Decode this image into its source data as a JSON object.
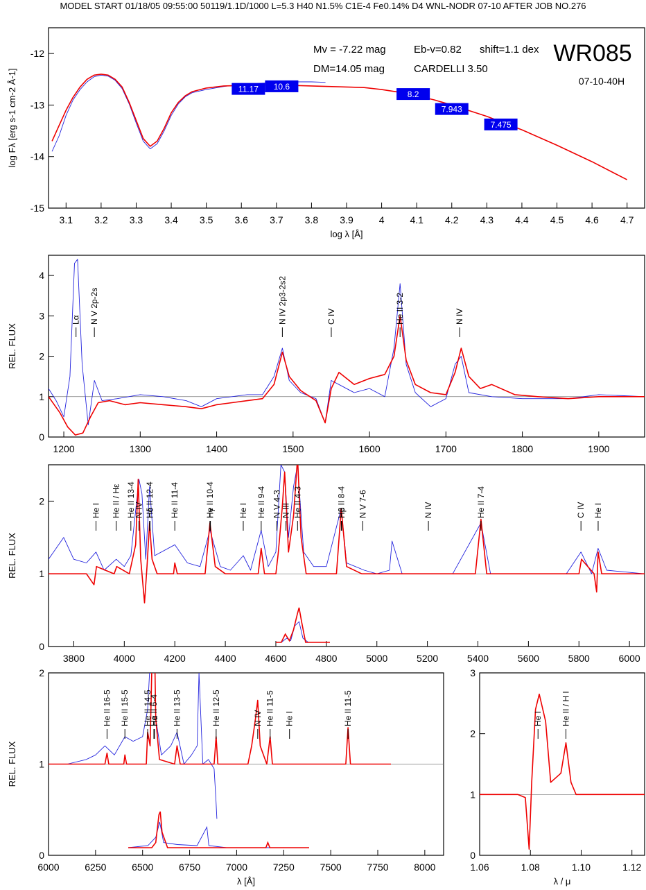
{
  "header": "MODEL START   01/18/05  09:55:00    50119/1.1D/1000 L=5.3 H40 N1.5% C1E-4 Fe0.14% D4 WNL-NODR 07-10     AFTER JOB NO.276",
  "colors": {
    "model": "#ee0000",
    "observation": "#2222dd",
    "box": "#0000ee",
    "axis": "#000000"
  },
  "chart_data": [
    {
      "id": "sed",
      "type": "line",
      "xlabel": "log λ [Å]",
      "ylabel": "log Fλ [erg s-1 cm-2 Å-1]",
      "xlim": [
        3.05,
        4.75
      ],
      "ylim": [
        -15,
        -11.5
      ],
      "xticks": [
        3.1,
        3.2,
        3.3,
        3.4,
        3.5,
        3.6,
        3.7,
        3.8,
        3.9,
        4.0,
        4.1,
        4.2,
        4.3,
        4.4,
        4.5,
        4.6,
        4.7
      ],
      "yticks": [
        -12,
        -13,
        -14,
        -15
      ],
      "title": "WR085",
      "subtitle": "07-10-40H",
      "annotations": [
        "Mv = -7.22 mag",
        "Eb-v=0.82",
        "shift=1.1 dex",
        "DM=14.05 mag",
        "CARDELLI 3.50"
      ],
      "boxes": [
        {
          "label": "11.17",
          "x": 3.62,
          "y": -12.68
        },
        {
          "label": "10.6",
          "x": 3.715,
          "y": -12.63
        },
        {
          "label": "8.2",
          "x": 4.09,
          "y": -12.78
        },
        {
          "label": "7.943",
          "x": 4.2,
          "y": -13.07
        },
        {
          "label": "7.475",
          "x": 4.34,
          "y": -13.37
        }
      ],
      "model": {
        "x": [
          3.06,
          3.08,
          3.1,
          3.12,
          3.14,
          3.16,
          3.18,
          3.2,
          3.22,
          3.24,
          3.26,
          3.28,
          3.3,
          3.32,
          3.34,
          3.36,
          3.38,
          3.4,
          3.42,
          3.44,
          3.46,
          3.5,
          3.55,
          3.6,
          3.65,
          3.7,
          3.75,
          3.8,
          3.85,
          3.9,
          3.95,
          4.0,
          4.05,
          4.1,
          4.15,
          4.2,
          4.3,
          4.4,
          4.5,
          4.6,
          4.7
        ],
        "y": [
          -13.7,
          -13.4,
          -13.1,
          -12.85,
          -12.65,
          -12.5,
          -12.42,
          -12.4,
          -12.42,
          -12.5,
          -12.65,
          -12.95,
          -13.3,
          -13.65,
          -13.8,
          -13.7,
          -13.45,
          -13.15,
          -12.95,
          -12.82,
          -12.74,
          -12.67,
          -12.63,
          -12.62,
          -12.61,
          -12.61,
          -12.62,
          -12.63,
          -12.64,
          -12.65,
          -12.66,
          -12.7,
          -12.75,
          -12.82,
          -12.9,
          -13.0,
          -13.22,
          -13.48,
          -13.78,
          -14.1,
          -14.45
        ]
      },
      "observation": {
        "x": [
          3.06,
          3.08,
          3.1,
          3.12,
          3.14,
          3.16,
          3.18,
          3.2,
          3.22,
          3.24,
          3.26,
          3.28,
          3.3,
          3.32,
          3.34,
          3.36,
          3.38,
          3.4,
          3.42,
          3.44,
          3.46,
          3.5,
          3.55,
          3.6,
          3.65,
          3.7,
          3.75,
          3.8,
          3.84
        ],
        "y": [
          -13.9,
          -13.6,
          -13.2,
          -12.9,
          -12.7,
          -12.55,
          -12.45,
          -12.42,
          -12.44,
          -12.52,
          -12.68,
          -12.98,
          -13.35,
          -13.7,
          -13.85,
          -13.75,
          -13.5,
          -13.2,
          -12.98,
          -12.84,
          -12.76,
          -12.7,
          -12.64,
          -12.6,
          -12.58,
          -12.56,
          -12.55,
          -12.55,
          -12.56
        ]
      }
    },
    {
      "id": "uv",
      "type": "line",
      "ylabel": "REL. FLUX",
      "xlim": [
        1180,
        1960
      ],
      "ylim": [
        0,
        4.5
      ],
      "xticks": [
        1200,
        1300,
        1400,
        1500,
        1600,
        1700,
        1800,
        1900
      ],
      "yticks": [
        0,
        1,
        2,
        3,
        4
      ],
      "lines": [
        {
          "label": "Lα",
          "x": 1216
        },
        {
          "label": "N V 2p-2s",
          "x": 1240
        },
        {
          "label": "N IV 2p3-2s2",
          "x": 1486
        },
        {
          "label": "C IV",
          "x": 1550
        },
        {
          "label": "He II 3-2",
          "x": 1640
        },
        {
          "label": "N IV",
          "x": 1718
        }
      ],
      "model": {
        "x": [
          1180,
          1195,
          1205,
          1215,
          1225,
          1235,
          1245,
          1260,
          1280,
          1300,
          1330,
          1360,
          1380,
          1400,
          1420,
          1440,
          1460,
          1475,
          1486,
          1495,
          1510,
          1530,
          1542,
          1550,
          1560,
          1580,
          1600,
          1620,
          1632,
          1640,
          1648,
          1660,
          1680,
          1700,
          1712,
          1720,
          1730,
          1745,
          1760,
          1790,
          1820,
          1860,
          1900,
          1960
        ],
        "y": [
          1.0,
          0.6,
          0.25,
          0.05,
          0.1,
          0.5,
          0.85,
          0.9,
          0.8,
          0.85,
          0.8,
          0.75,
          0.7,
          0.8,
          0.85,
          0.9,
          0.95,
          1.3,
          2.1,
          1.5,
          1.15,
          0.9,
          0.35,
          1.2,
          1.6,
          1.3,
          1.45,
          1.55,
          2.0,
          3.0,
          1.9,
          1.3,
          1.1,
          1.05,
          1.6,
          2.2,
          1.5,
          1.2,
          1.3,
          1.05,
          1.0,
          0.95,
          1.0,
          1.0
        ]
      },
      "observation": {
        "x": [
          1180,
          1190,
          1200,
          1208,
          1214,
          1218,
          1224,
          1232,
          1240,
          1250,
          1270,
          1300,
          1330,
          1360,
          1380,
          1400,
          1420,
          1440,
          1460,
          1475,
          1486,
          1495,
          1510,
          1530,
          1542,
          1550,
          1560,
          1580,
          1600,
          1620,
          1632,
          1640,
          1648,
          1660,
          1680,
          1700,
          1712,
          1720,
          1730,
          1760,
          1800,
          1860,
          1900,
          1960
        ],
        "y": [
          1.2,
          0.9,
          0.5,
          1.5,
          4.3,
          4.4,
          1.8,
          0.3,
          1.4,
          0.9,
          0.95,
          1.05,
          1.0,
          0.9,
          0.75,
          0.95,
          1.0,
          1.05,
          1.05,
          1.5,
          2.2,
          1.4,
          1.1,
          0.95,
          0.35,
          1.4,
          1.3,
          1.1,
          1.2,
          1.0,
          2.2,
          3.8,
          1.8,
          1.1,
          0.75,
          0.95,
          1.8,
          2.0,
          1.1,
          1.0,
          0.95,
          0.95,
          1.05,
          1.0
        ]
      }
    },
    {
      "id": "optical",
      "type": "line",
      "ylabel": "REL. FLUX",
      "xlim": [
        3700,
        6060
      ],
      "ylim": [
        0,
        2.5
      ],
      "xticks": [
        3800,
        4000,
        4200,
        4400,
        4600,
        4800,
        5000,
        5200,
        5400,
        5600,
        5800,
        6000
      ],
      "yticks": [
        0,
        1,
        2
      ],
      "lines": [
        {
          "label": "He I",
          "x": 3888
        },
        {
          "label": "He II / Hε",
          "x": 3968
        },
        {
          "label": "He II 13-4",
          "x": 4026
        },
        {
          "label": "N IV",
          "x": 4058
        },
        {
          "label": "He II 12-4",
          "x": 4100
        },
        {
          "label": "Hδ",
          "x": 4102
        },
        {
          "label": "He II 11-4",
          "x": 4200
        },
        {
          "label": "He II 10-4",
          "x": 4339
        },
        {
          "label": "Hγ",
          "x": 4341
        },
        {
          "label": "He I",
          "x": 4471
        },
        {
          "label": "He II 9-4",
          "x": 4542
        },
        {
          "label": "N V 4-3",
          "x": 4604
        },
        {
          "label": "N III",
          "x": 4640
        },
        {
          "label": "He II 4-3",
          "x": 4686
        },
        {
          "label": "He II 8-4",
          "x": 4859
        },
        {
          "label": "Hβ",
          "x": 4861
        },
        {
          "label": "N V 7-6",
          "x": 4944
        },
        {
          "label": "N IV",
          "x": 5204
        },
        {
          "label": "He II 7-4",
          "x": 5412
        },
        {
          "label": "C IV",
          "x": 5808
        },
        {
          "label": "He I",
          "x": 5876
        }
      ],
      "model": {
        "x": [
          3700,
          3850,
          3880,
          3890,
          3960,
          3970,
          4020,
          4045,
          4055,
          4065,
          4080,
          4090,
          4100,
          4110,
          4130,
          4195,
          4200,
          4210,
          4320,
          4339,
          4360,
          4400,
          4530,
          4542,
          4555,
          4600,
          4610,
          4625,
          4635,
          4650,
          4670,
          4686,
          4700,
          4720,
          4840,
          4859,
          4880,
          4940,
          5200,
          5390,
          5412,
          5435,
          5800,
          5810,
          5860,
          5870,
          5876,
          5890,
          6060
        ],
        "y": [
          1.0,
          1.0,
          0.85,
          1.1,
          1.0,
          1.1,
          1.0,
          1.4,
          2.3,
          1.2,
          0.6,
          1.1,
          1.7,
          1.2,
          1.0,
          1.0,
          1.15,
          1.0,
          1.0,
          1.7,
          1.1,
          1.0,
          1.0,
          1.35,
          1.0,
          1.0,
          1.3,
          1.9,
          2.4,
          1.3,
          1.8,
          2.6,
          1.5,
          1.0,
          1.0,
          1.9,
          1.1,
          1.0,
          1.0,
          1.0,
          1.75,
          1.0,
          1.0,
          1.2,
          1.0,
          0.75,
          1.3,
          1.0,
          1.0
        ]
      },
      "observation": {
        "x": [
          3700,
          3720,
          3760,
          3800,
          3850,
          3888,
          3920,
          3968,
          4000,
          4026,
          4058,
          4070,
          4085,
          4100,
          4120,
          4200,
          4250,
          4300,
          4339,
          4380,
          4420,
          4471,
          4500,
          4542,
          4570,
          4600,
          4620,
          4635,
          4650,
          4670,
          4686,
          4710,
          4750,
          4800,
          4859,
          4880,
          4950,
          5000,
          5050,
          5060,
          5100,
          5200,
          5300,
          5412,
          5450,
          5600,
          5750,
          5808,
          5850,
          5876,
          5910,
          6060
        ],
        "y": [
          1.2,
          1.3,
          1.5,
          1.2,
          1.15,
          1.3,
          1.05,
          1.2,
          1.1,
          1.25,
          2.3,
          2.1,
          1.2,
          2.2,
          1.25,
          1.4,
          1.15,
          1.1,
          1.6,
          1.1,
          1.05,
          1.25,
          1.05,
          1.6,
          1.1,
          1.3,
          2.5,
          2.4,
          1.5,
          2.2,
          2.5,
          1.3,
          1.1,
          1.1,
          1.9,
          1.15,
          1.05,
          1.0,
          1.05,
          1.45,
          1.0,
          1.0,
          1.0,
          1.7,
          1.0,
          1.0,
          1.0,
          1.3,
          1.0,
          1.35,
          1.05,
          1.0
        ]
      },
      "inset": {
        "xlim": [
          4600,
          4800
        ],
        "model": {
          "x": [
            4600,
            4620,
            4635,
            4650,
            4665,
            4680,
            4686,
            4695,
            4710,
            4800
          ],
          "y": [
            0.1,
            0.1,
            0.2,
            0.12,
            0.25,
            0.45,
            0.52,
            0.35,
            0.1,
            0.1
          ]
        },
        "observation": {
          "x": [
            4600,
            4620,
            4640,
            4655,
            4670,
            4686,
            4700,
            4720,
            4800
          ],
          "y": [
            0.1,
            0.1,
            0.15,
            0.12,
            0.3,
            0.35,
            0.15,
            0.1,
            0.1
          ]
        }
      }
    },
    {
      "id": "red",
      "type": "line",
      "xlabel": "λ [Å]",
      "ylabel": "REL. FLUX",
      "xlim": [
        6000,
        8100
      ],
      "ylim": [
        0,
        2
      ],
      "xticks": [
        6000,
        6250,
        6500,
        6750,
        7000,
        7250,
        7500,
        7750,
        8000
      ],
      "yticks": [
        0,
        1,
        2
      ],
      "lines": [
        {
          "label": "He II 16-5",
          "x": 6311
        },
        {
          "label": "He II 15-5",
          "x": 6406
        },
        {
          "label": "He II 14-5",
          "x": 6527
        },
        {
          "label": "He II 6-4",
          "x": 6560
        },
        {
          "label": "Hα",
          "x": 6563
        },
        {
          "label": "He II 13-5",
          "x": 6683
        },
        {
          "label": "He II 12-5",
          "x": 6891
        },
        {
          "label": "N IV",
          "x": 7112
        },
        {
          "label": "He II 11-5",
          "x": 7178
        },
        {
          "label": "He I",
          "x": 7281
        },
        {
          "label": "He II 11-5",
          "x": 7592
        }
      ],
      "model": {
        "x": [
          6000,
          6300,
          6311,
          6320,
          6400,
          6406,
          6415,
          6520,
          6527,
          6540,
          6555,
          6560,
          6570,
          6590,
          6670,
          6683,
          6700,
          6880,
          6891,
          6900,
          7060,
          7080,
          7100,
          7112,
          7125,
          7160,
          7178,
          7190,
          7580,
          7592,
          7605,
          7820
        ],
        "y": [
          1.0,
          1.0,
          1.12,
          1.0,
          1.0,
          1.1,
          1.0,
          1.0,
          1.35,
          1.2,
          2.6,
          2.8,
          1.5,
          1.05,
          1.0,
          1.2,
          1.0,
          1.0,
          1.3,
          1.0,
          1.0,
          1.2,
          1.5,
          1.7,
          1.2,
          1.0,
          1.3,
          1.0,
          1.0,
          1.4,
          1.0,
          1.0
        ]
      },
      "observation": {
        "x": [
          6000,
          6100,
          6200,
          6250,
          6300,
          6350,
          6406,
          6450,
          6500,
          6527,
          6555,
          6560,
          6570,
          6600,
          6650,
          6683,
          6720,
          6760,
          6790,
          6800,
          6820,
          6850,
          6880,
          6890,
          6895
        ],
        "y": [
          1.0,
          1.0,
          1.05,
          1.1,
          1.2,
          1.1,
          1.3,
          1.25,
          1.3,
          1.6,
          2.7,
          2.9,
          1.5,
          1.1,
          1.2,
          1.35,
          1.0,
          1.1,
          1.2,
          2.0,
          1.0,
          1.05,
          0.95,
          0.6,
          0.4
        ]
      },
      "inset": {
        "xlim": [
          6400,
          7320
        ],
        "model": {
          "x": [
            6400,
            6520,
            6540,
            6556,
            6563,
            6572,
            6600,
            7100,
            7110,
            7120,
            7320
          ],
          "y": [
            0.1,
            0.1,
            0.15,
            0.42,
            0.45,
            0.25,
            0.1,
            0.1,
            0.15,
            0.1,
            0.1
          ]
        },
        "observation": {
          "x": [
            6400,
            6500,
            6540,
            6560,
            6580,
            6650,
            6750,
            6800,
            6810,
            6900,
            7320
          ],
          "y": [
            0.1,
            0.12,
            0.2,
            0.35,
            0.15,
            0.13,
            0.12,
            0.3,
            0.12,
            0.1,
            0.1
          ]
        }
      }
    },
    {
      "id": "ir",
      "type": "line",
      "xlabel": "λ / μ",
      "xlim": [
        1.06,
        1.125
      ],
      "ylim": [
        0,
        3
      ],
      "xticks": [
        1.06,
        1.08,
        1.1,
        1.12
      ],
      "xtick_labels": [
        "1.06",
        "1.08",
        "1.10",
        "1.12"
      ],
      "yticks": [
        0,
        1,
        2,
        3
      ],
      "lines": [
        {
          "label": "He I",
          "x": 1.083
        },
        {
          "label": "He II / H I",
          "x": 1.094
        }
      ],
      "model": {
        "x": [
          1.06,
          1.075,
          1.078,
          1.0795,
          1.0805,
          1.082,
          1.0835,
          1.086,
          1.088,
          1.092,
          1.094,
          1.096,
          1.098,
          1.1,
          1.125
        ],
        "y": [
          1.0,
          1.0,
          0.95,
          0.1,
          1.2,
          2.4,
          2.65,
          2.2,
          1.2,
          1.35,
          1.85,
          1.2,
          1.0,
          1.0,
          1.0
        ]
      }
    }
  ]
}
